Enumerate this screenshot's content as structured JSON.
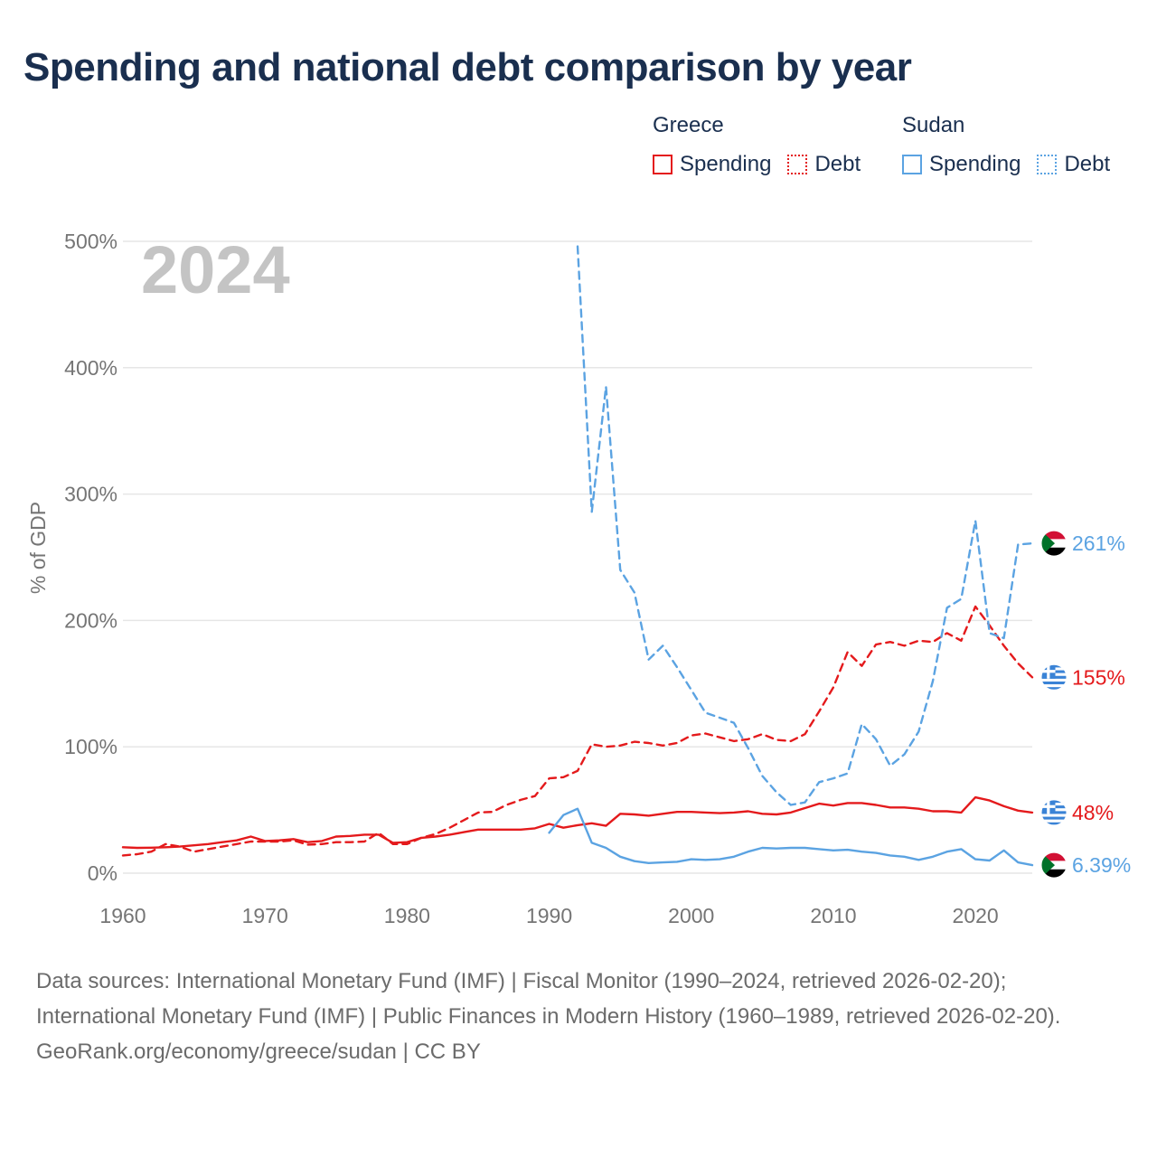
{
  "title": "Spending and national debt comparison by year",
  "legend": {
    "groups": [
      {
        "country": "Greece",
        "spending_label": "Spending",
        "debt_label": "Debt",
        "color": "#e41a1c"
      },
      {
        "country": "Sudan",
        "spending_label": "Spending",
        "debt_label": "Debt",
        "color": "#5ba3e2"
      }
    ]
  },
  "year_watermark": "2024",
  "colors": {
    "greece": "#e41a1c",
    "sudan": "#5ba3e2",
    "grid": "#e6e6e6",
    "axis_text": "#757575",
    "watermark": "#c4c4c4"
  },
  "chart_data": {
    "type": "line",
    "title": "Spending and national debt comparison by year",
    "xlabel": "",
    "ylabel": "% of GDP",
    "xlim": [
      1960,
      2024
    ],
    "ylim": [
      0,
      500
    ],
    "x_ticks": [
      1960,
      1970,
      1980,
      1990,
      2000,
      2010,
      2020
    ],
    "y_ticks": [
      0,
      100,
      200,
      300,
      400,
      500
    ],
    "y_tick_labels": [
      "0%",
      "100%",
      "200%",
      "300%",
      "400%",
      "500%"
    ],
    "series": [
      {
        "name": "Greece Spending",
        "country": "Greece",
        "style": "solid",
        "color": "#e41a1c",
        "x": [
          1960,
          1961,
          1962,
          1963,
          1964,
          1965,
          1966,
          1967,
          1968,
          1969,
          1970,
          1971,
          1972,
          1973,
          1974,
          1975,
          1976,
          1977,
          1978,
          1979,
          1980,
          1981,
          1982,
          1983,
          1984,
          1985,
          1986,
          1987,
          1988,
          1989,
          1990,
          1991,
          1992,
          1993,
          1994,
          1995,
          1996,
          1997,
          1998,
          1999,
          2000,
          2001,
          2002,
          2003,
          2004,
          2005,
          2006,
          2007,
          2008,
          2009,
          2010,
          2011,
          2012,
          2013,
          2014,
          2015,
          2016,
          2017,
          2018,
          2019,
          2020,
          2021,
          2022,
          2023,
          2024
        ],
        "values": [
          20.5,
          20,
          20.2,
          20.5,
          21,
          22,
          23,
          24.5,
          26,
          29,
          25.5,
          26,
          27,
          24.5,
          25.5,
          29,
          29.5,
          30.5,
          30.5,
          24,
          24.5,
          28,
          29,
          30.5,
          32.5,
          34.5,
          34.5,
          34.5,
          34.5,
          35.5,
          39,
          36,
          38,
          39.5,
          37.5,
          47,
          46.5,
          45.5,
          47,
          48.5,
          48.5,
          48,
          47.5,
          48,
          49,
          47,
          46.5,
          48,
          51.5,
          55,
          53.5,
          55.5,
          55.5,
          54,
          52,
          52,
          51,
          49,
          49,
          48,
          60,
          57.5,
          53,
          49.5,
          48
        ]
      },
      {
        "name": "Greece Debt",
        "country": "Greece",
        "style": "dashed",
        "color": "#e41a1c",
        "x": [
          1960,
          1961,
          1962,
          1963,
          1964,
          1965,
          1966,
          1967,
          1968,
          1969,
          1970,
          1971,
          1972,
          1973,
          1974,
          1975,
          1976,
          1977,
          1978,
          1979,
          1980,
          1981,
          1982,
          1983,
          1984,
          1985,
          1986,
          1987,
          1988,
          1989,
          1990,
          1991,
          1992,
          1993,
          1994,
          1995,
          1996,
          1997,
          1998,
          1999,
          2000,
          2001,
          2002,
          2003,
          2004,
          2005,
          2006,
          2007,
          2008,
          2009,
          2010,
          2011,
          2012,
          2013,
          2014,
          2015,
          2016,
          2017,
          2018,
          2019,
          2020,
          2021,
          2022,
          2023,
          2024
        ],
        "values": [
          14,
          15,
          17,
          23,
          21,
          17,
          19,
          21,
          23,
          25,
          25,
          25,
          26,
          22.5,
          23,
          24.5,
          24.5,
          25,
          32,
          23,
          23,
          28,
          31,
          36,
          42,
          48,
          48.5,
          54,
          58,
          61,
          75,
          76,
          81,
          102,
          100,
          101,
          104,
          103,
          101,
          103,
          109,
          110.5,
          107.5,
          104.5,
          106,
          110,
          105.5,
          104.5,
          110,
          128,
          147,
          175,
          164,
          181,
          183,
          180,
          184,
          183,
          190,
          184,
          211,
          196,
          180,
          166,
          155
        ]
      },
      {
        "name": "Sudan Spending",
        "country": "Sudan",
        "style": "solid",
        "color": "#5ba3e2",
        "x": [
          1990,
          1991,
          1992,
          1993,
          1994,
          1995,
          1996,
          1997,
          1998,
          1999,
          2000,
          2001,
          2002,
          2003,
          2004,
          2005,
          2006,
          2007,
          2008,
          2009,
          2010,
          2011,
          2012,
          2013,
          2014,
          2015,
          2016,
          2017,
          2018,
          2019,
          2020,
          2021,
          2022,
          2023,
          2024
        ],
        "values": [
          32,
          46,
          51,
          24,
          20,
          13,
          9.5,
          8,
          8.5,
          9,
          11,
          10.5,
          11,
          13,
          17,
          20,
          19.5,
          20,
          20,
          19,
          18,
          18.5,
          17,
          16,
          14,
          13,
          10.5,
          13,
          17,
          19,
          11,
          10,
          18,
          8.5,
          6.39
        ]
      },
      {
        "name": "Sudan Debt",
        "country": "Sudan",
        "style": "dashed",
        "color": "#5ba3e2",
        "x": [
          1992,
          1993,
          1994,
          1995,
          1996,
          1997,
          1998,
          1999,
          2000,
          2001,
          2002,
          2003,
          2004,
          2005,
          2006,
          2007,
          2008,
          2009,
          2010,
          2011,
          2012,
          2013,
          2014,
          2015,
          2016,
          2017,
          2018,
          2019,
          2020,
          2021,
          2022,
          2023,
          2024
        ],
        "values": [
          496,
          286,
          385,
          240,
          222,
          169,
          180,
          163,
          145,
          127,
          123,
          119,
          99,
          77,
          64,
          54,
          56,
          72,
          75,
          79,
          118,
          106,
          85,
          94,
          112,
          152,
          210,
          217,
          279,
          190,
          186,
          260,
          261
        ]
      }
    ],
    "end_labels": [
      {
        "country": "Sudan",
        "series": "Sudan Debt",
        "value": 261,
        "label": "261%",
        "color": "#5ba3e2"
      },
      {
        "country": "Greece",
        "series": "Greece Debt",
        "value": 155,
        "label": "155%",
        "color": "#e41a1c"
      },
      {
        "country": "Greece",
        "series": "Greece Spending",
        "value": 48,
        "label": "48%",
        "color": "#e41a1c"
      },
      {
        "country": "Sudan",
        "series": "Sudan Spending",
        "value": 6.39,
        "label": "6.39%",
        "color": "#5ba3e2"
      }
    ]
  },
  "footer": {
    "sources": "Data sources: International Monetary Fund (IMF) | Fiscal Monitor (1990–2024, retrieved 2026-02-20); International Monetary Fund (IMF) | Public Finances in Modern History (1960–1989, retrieved 2026-02-20).",
    "credit": "GeoRank.org/economy/greece/sudan | CC BY"
  }
}
